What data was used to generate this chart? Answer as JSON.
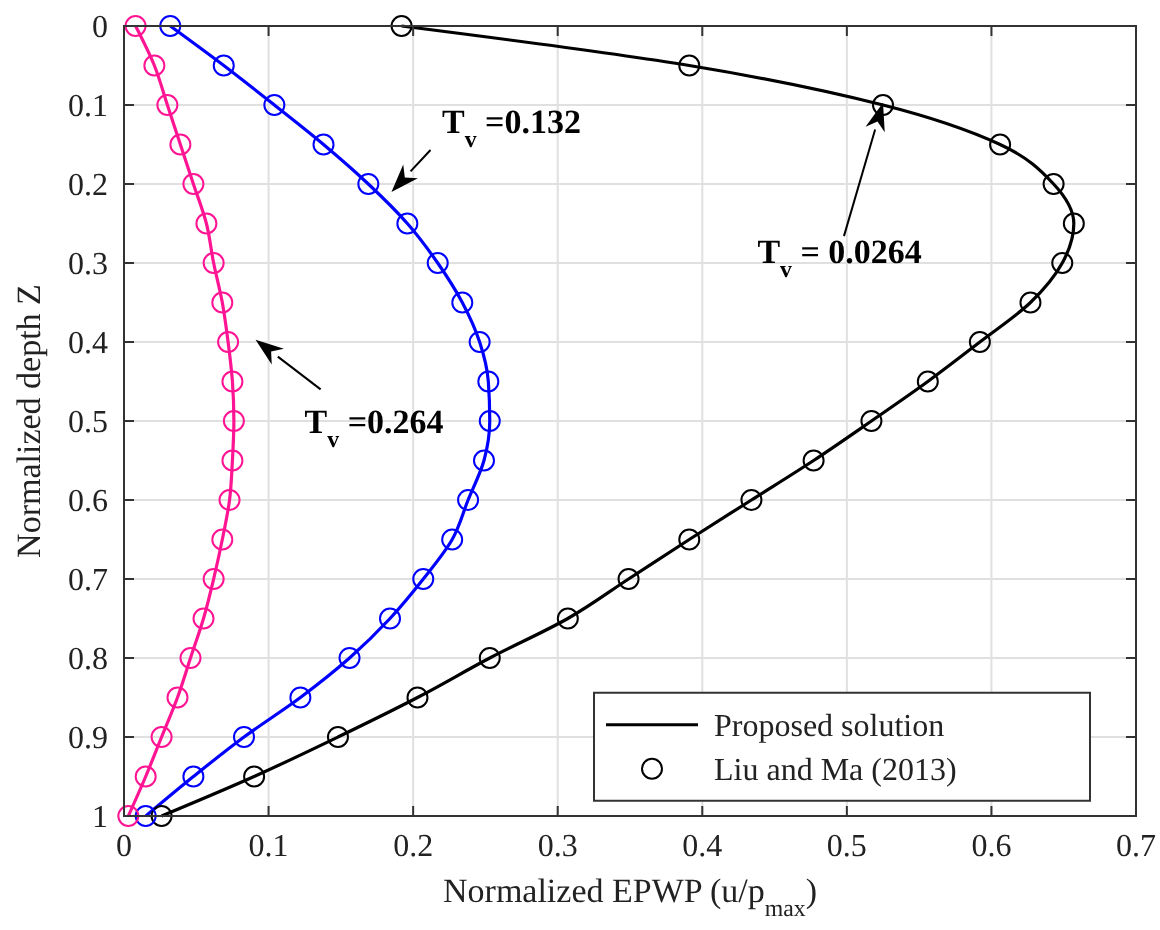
{
  "chart_data": {
    "type": "line",
    "xlabel": "Normalized EPWP (u/p$_{max}$)",
    "ylabel": "Normalized depth Z",
    "xlim": [
      0,
      0.7
    ],
    "xticks": [
      0,
      0.1,
      0.2,
      0.3,
      0.4,
      0.5,
      0.6,
      0.7
    ],
    "ylim": [
      1,
      0
    ],
    "yticks": [
      0,
      0.1,
      0.2,
      0.3,
      0.4,
      0.5,
      0.6,
      0.7,
      0.8,
      0.9,
      1
    ],
    "grid": true,
    "legend": "bottom right",
    "series": [
      {
        "name": "Proposed solution",
        "marker": "none",
        "color": "#000000",
        "x": [
          0.192,
          0.391,
          0.525,
          0.606,
          0.643,
          0.657,
          0.649,
          0.627,
          0.592,
          0.556,
          0.517,
          0.477,
          0.434,
          0.391,
          0.349,
          0.307,
          0.253,
          0.203,
          0.148,
          0.09,
          0.026
        ],
        "values": [
          0,
          0.05,
          0.1,
          0.15,
          0.2,
          0.25,
          0.3,
          0.35,
          0.4,
          0.45,
          0.5,
          0.55,
          0.6,
          0.65,
          0.7,
          0.75,
          0.8,
          0.85,
          0.9,
          0.95,
          1
        ]
      },
      {
        "marker": "none",
        "color": "#0000ff",
        "x": [
          0.032,
          0.069,
          0.104,
          0.138,
          0.169,
          0.196,
          0.217,
          0.234,
          0.246,
          0.252,
          0.253,
          0.249,
          0.238,
          0.227,
          0.207,
          0.184,
          0.156,
          0.122,
          0.083,
          0.048,
          0.015
        ],
        "values": [
          0,
          0.05,
          0.1,
          0.15,
          0.2,
          0.25,
          0.3,
          0.35,
          0.4,
          0.45,
          0.5,
          0.55,
          0.6,
          0.65,
          0.7,
          0.75,
          0.8,
          0.85,
          0.9,
          0.95,
          1
        ]
      },
      {
        "marker": "none",
        "color": "#ff1493",
        "x": [
          0.008,
          0.021,
          0.03,
          0.039,
          0.048,
          0.057,
          0.062,
          0.068,
          0.072,
          0.075,
          0.076,
          0.075,
          0.073,
          0.068,
          0.062,
          0.055,
          0.046,
          0.037,
          0.026,
          0.015,
          0.003
        ],
        "values": [
          0,
          0.05,
          0.1,
          0.15,
          0.2,
          0.25,
          0.3,
          0.35,
          0.4,
          0.45,
          0.5,
          0.55,
          0.6,
          0.65,
          0.7,
          0.75,
          0.8,
          0.85,
          0.9,
          0.95,
          1
        ]
      },
      {
        "name": "Liu and Ma (2013)",
        "type": "scatter",
        "marker": "circle",
        "color": "#000000",
        "x": [
          0.192,
          0.391,
          0.525,
          0.606,
          0.643,
          0.657,
          0.649,
          0.627,
          0.592,
          0.556,
          0.517,
          0.477,
          0.434,
          0.391,
          0.349,
          0.307,
          0.253,
          0.203,
          0.148,
          0.09,
          0.026
        ],
        "values": [
          0,
          0.05,
          0.1,
          0.15,
          0.2,
          0.25,
          0.3,
          0.35,
          0.4,
          0.45,
          0.5,
          0.55,
          0.6,
          0.65,
          0.7,
          0.75,
          0.8,
          0.85,
          0.9,
          0.95,
          1
        ]
      },
      {
        "type": "scatter",
        "marker": "circle",
        "color": "#0000ff",
        "x": [
          0.032,
          0.069,
          0.104,
          0.138,
          0.169,
          0.196,
          0.217,
          0.234,
          0.246,
          0.252,
          0.253,
          0.249,
          0.238,
          0.227,
          0.207,
          0.184,
          0.156,
          0.122,
          0.083,
          0.048,
          0.015
        ],
        "values": [
          0,
          0.05,
          0.1,
          0.15,
          0.2,
          0.25,
          0.3,
          0.35,
          0.4,
          0.45,
          0.5,
          0.55,
          0.6,
          0.65,
          0.7,
          0.75,
          0.8,
          0.85,
          0.9,
          0.95,
          1
        ]
      },
      {
        "type": "scatter",
        "marker": "circle",
        "color": "#ff1493",
        "x": [
          0.008,
          0.021,
          0.03,
          0.039,
          0.048,
          0.057,
          0.062,
          0.068,
          0.072,
          0.075,
          0.076,
          0.075,
          0.073,
          0.068,
          0.062,
          0.055,
          0.046,
          0.037,
          0.026,
          0.015,
          0.003
        ],
        "values": [
          0,
          0.05,
          0.1,
          0.15,
          0.2,
          0.25,
          0.3,
          0.35,
          0.4,
          0.45,
          0.5,
          0.55,
          0.6,
          0.65,
          0.7,
          0.75,
          0.8,
          0.85,
          0.9,
          0.95,
          1
        ]
      }
    ],
    "annotations": [
      "T$_{v}$ =0.132",
      "T$_{v}$ =0.264",
      "T$_{v}$ = 0.0264"
    ]
  }
}
